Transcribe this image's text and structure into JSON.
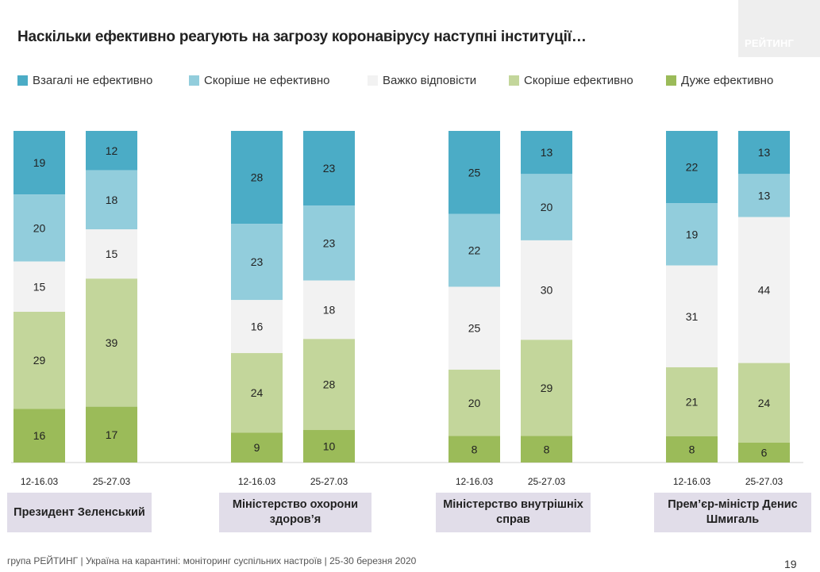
{
  "title": "Наскільки ефективно реагують на загрозу коронавірусу наступні інституції…",
  "logo_text": "РЕЙТИНГ",
  "colors": {
    "very_ineffective": "#4bacc6",
    "rather_ineffective": "#92cddc",
    "hard_to_say": "#f2f2f2",
    "rather_effective": "#c3d69b",
    "very_effective": "#9bbb59"
  },
  "chart_data": {
    "type": "bar",
    "stacked": true,
    "normalized_to": 100,
    "legend_position": "top",
    "grid": false,
    "categories": [
      "12-16.03",
      "25-27.03",
      "12-16.03",
      "25-27.03",
      "12-16.03",
      "25-27.03",
      "12-16.03",
      "25-27.03"
    ],
    "groups": [
      "Президент Зеленський",
      "Міністерство охорони здоров’я",
      "Міністерство внутрішніх справ",
      "Прем’єр-міністр Денис Шмигаль"
    ],
    "series": [
      {
        "name": "Взагалі не ефективно",
        "values": [
          19,
          12,
          28,
          23,
          25,
          13,
          22,
          13
        ]
      },
      {
        "name": "Скоріше не ефективно",
        "values": [
          20,
          18,
          23,
          23,
          22,
          20,
          19,
          13
        ]
      },
      {
        "name": "Важко відповісти",
        "values": [
          15,
          15,
          16,
          18,
          25,
          30,
          31,
          44
        ]
      },
      {
        "name": "Скоріше ефективно",
        "values": [
          29,
          39,
          24,
          28,
          20,
          29,
          21,
          24
        ]
      },
      {
        "name": "Дуже ефективно",
        "values": [
          16,
          17,
          9,
          10,
          8,
          8,
          8,
          6
        ]
      }
    ]
  },
  "footer": "група РЕЙТИНГ  |  Україна на карантині: моніторинг суспільних настроїв  |  25-30 березня 2020",
  "page_number": "19"
}
